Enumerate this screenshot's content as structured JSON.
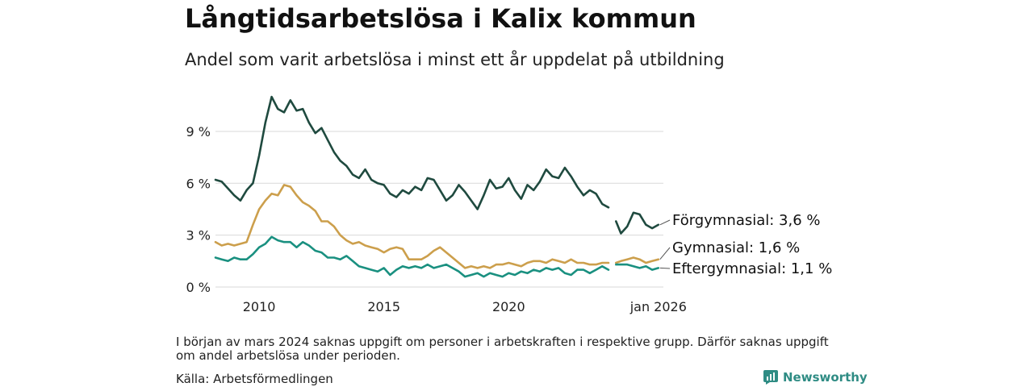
{
  "title": "Långtidsarbetslösa i Kalix kommun",
  "subtitle": "Andel som varit arbetslösa i minst ett år uppdelat på utbildning",
  "note": "I början av mars 2024 saknas uppgift om personer i arbetskraften i respektive grupp. Därför saknas uppgift om andel arbetslösa under perioden.",
  "source": "Källa: Arbetsförmedlingen",
  "brand": "Newsworthy",
  "colors": {
    "forgymnasial": "#1f4a3f",
    "gymnasial": "#cc9f4c",
    "eftergymnasial": "#1a9080",
    "grid": "#d9d9d9",
    "brand": "#2f8c84"
  },
  "chart_data": {
    "type": "line",
    "title": "Långtidsarbetslösa i Kalix kommun",
    "xlabel": "",
    "ylabel": "",
    "xlim": [
      2008.25,
      2026.2
    ],
    "ylim": [
      0,
      11.5
    ],
    "x_ticks": [
      {
        "value": 2010,
        "label": "2010"
      },
      {
        "value": 2015,
        "label": "2015"
      },
      {
        "value": 2020,
        "label": "2020"
      },
      {
        "value": 2026.0,
        "label": "jan 2026"
      }
    ],
    "y_ticks": [
      {
        "value": 0,
        "label": "0 %"
      },
      {
        "value": 3,
        "label": "3 %"
      },
      {
        "value": 6,
        "label": "6 %"
      },
      {
        "value": 9,
        "label": "9 %"
      }
    ],
    "gap": [
      2024.0,
      2024.3
    ],
    "series": [
      {
        "name": "Förgymnasial",
        "end_label": "Förgymnasial: 3,6 %",
        "color": "#1f4a3f",
        "points": [
          [
            2008.25,
            6.2
          ],
          [
            2008.5,
            6.1
          ],
          [
            2008.75,
            5.7
          ],
          [
            2009.0,
            5.3
          ],
          [
            2009.25,
            5.0
          ],
          [
            2009.5,
            5.6
          ],
          [
            2009.75,
            6.0
          ],
          [
            2010.0,
            7.6
          ],
          [
            2010.25,
            9.5
          ],
          [
            2010.5,
            11.0
          ],
          [
            2010.75,
            10.3
          ],
          [
            2011.0,
            10.1
          ],
          [
            2011.25,
            10.8
          ],
          [
            2011.5,
            10.2
          ],
          [
            2011.75,
            10.3
          ],
          [
            2012.0,
            9.5
          ],
          [
            2012.25,
            8.9
          ],
          [
            2012.5,
            9.2
          ],
          [
            2012.75,
            8.5
          ],
          [
            2013.0,
            7.8
          ],
          [
            2013.25,
            7.3
          ],
          [
            2013.5,
            7.0
          ],
          [
            2013.75,
            6.5
          ],
          [
            2014.0,
            6.3
          ],
          [
            2014.25,
            6.8
          ],
          [
            2014.5,
            6.2
          ],
          [
            2014.75,
            6.0
          ],
          [
            2015.0,
            5.9
          ],
          [
            2015.25,
            5.4
          ],
          [
            2015.5,
            5.2
          ],
          [
            2015.75,
            5.6
          ],
          [
            2016.0,
            5.4
          ],
          [
            2016.25,
            5.8
          ],
          [
            2016.5,
            5.6
          ],
          [
            2016.75,
            6.3
          ],
          [
            2017.0,
            6.2
          ],
          [
            2017.25,
            5.6
          ],
          [
            2017.5,
            5.0
          ],
          [
            2017.75,
            5.3
          ],
          [
            2018.0,
            5.9
          ],
          [
            2018.25,
            5.5
          ],
          [
            2018.5,
            5.0
          ],
          [
            2018.75,
            4.5
          ],
          [
            2019.0,
            5.3
          ],
          [
            2019.25,
            6.2
          ],
          [
            2019.5,
            5.7
          ],
          [
            2019.75,
            5.8
          ],
          [
            2020.0,
            6.3
          ],
          [
            2020.25,
            5.6
          ],
          [
            2020.5,
            5.1
          ],
          [
            2020.75,
            5.9
          ],
          [
            2021.0,
            5.6
          ],
          [
            2021.25,
            6.1
          ],
          [
            2021.5,
            6.8
          ],
          [
            2021.75,
            6.4
          ],
          [
            2022.0,
            6.3
          ],
          [
            2022.25,
            6.9
          ],
          [
            2022.5,
            6.4
          ],
          [
            2022.75,
            5.8
          ],
          [
            2023.0,
            5.3
          ],
          [
            2023.25,
            5.6
          ],
          [
            2023.5,
            5.4
          ],
          [
            2023.75,
            4.8
          ],
          [
            2024.0,
            4.6
          ],
          [
            null,
            null
          ],
          [
            2024.3,
            3.8
          ],
          [
            2024.5,
            3.1
          ],
          [
            2024.75,
            3.5
          ],
          [
            2025.0,
            4.3
          ],
          [
            2025.25,
            4.2
          ],
          [
            2025.5,
            3.6
          ],
          [
            2025.75,
            3.4
          ],
          [
            2026.0,
            3.6
          ]
        ]
      },
      {
        "name": "Gymnasial",
        "end_label": "Gymnasial: 1,6 %",
        "color": "#cc9f4c",
        "points": [
          [
            2008.25,
            2.6
          ],
          [
            2008.5,
            2.4
          ],
          [
            2008.75,
            2.5
          ],
          [
            2009.0,
            2.4
          ],
          [
            2009.25,
            2.5
          ],
          [
            2009.5,
            2.6
          ],
          [
            2009.75,
            3.6
          ],
          [
            2010.0,
            4.5
          ],
          [
            2010.25,
            5.0
          ],
          [
            2010.5,
            5.4
          ],
          [
            2010.75,
            5.3
          ],
          [
            2011.0,
            5.9
          ],
          [
            2011.25,
            5.8
          ],
          [
            2011.5,
            5.3
          ],
          [
            2011.75,
            4.9
          ],
          [
            2012.0,
            4.7
          ],
          [
            2012.25,
            4.4
          ],
          [
            2012.5,
            3.8
          ],
          [
            2012.75,
            3.8
          ],
          [
            2013.0,
            3.5
          ],
          [
            2013.25,
            3.0
          ],
          [
            2013.5,
            2.7
          ],
          [
            2013.75,
            2.5
          ],
          [
            2014.0,
            2.6
          ],
          [
            2014.25,
            2.4
          ],
          [
            2014.5,
            2.3
          ],
          [
            2014.75,
            2.2
          ],
          [
            2015.0,
            2.0
          ],
          [
            2015.25,
            2.2
          ],
          [
            2015.5,
            2.3
          ],
          [
            2015.75,
            2.2
          ],
          [
            2016.0,
            1.6
          ],
          [
            2016.25,
            1.6
          ],
          [
            2016.5,
            1.6
          ],
          [
            2016.75,
            1.8
          ],
          [
            2017.0,
            2.1
          ],
          [
            2017.25,
            2.3
          ],
          [
            2017.5,
            2.0
          ],
          [
            2017.75,
            1.7
          ],
          [
            2018.0,
            1.4
          ],
          [
            2018.25,
            1.1
          ],
          [
            2018.5,
            1.2
          ],
          [
            2018.75,
            1.1
          ],
          [
            2019.0,
            1.2
          ],
          [
            2019.25,
            1.1
          ],
          [
            2019.5,
            1.3
          ],
          [
            2019.75,
            1.3
          ],
          [
            2020.0,
            1.4
          ],
          [
            2020.25,
            1.3
          ],
          [
            2020.5,
            1.2
          ],
          [
            2020.75,
            1.4
          ],
          [
            2021.0,
            1.5
          ],
          [
            2021.25,
            1.5
          ],
          [
            2021.5,
            1.4
          ],
          [
            2021.75,
            1.6
          ],
          [
            2022.0,
            1.5
          ],
          [
            2022.25,
            1.4
          ],
          [
            2022.5,
            1.6
          ],
          [
            2022.75,
            1.4
          ],
          [
            2023.0,
            1.4
          ],
          [
            2023.25,
            1.3
          ],
          [
            2023.5,
            1.3
          ],
          [
            2023.75,
            1.4
          ],
          [
            2024.0,
            1.4
          ],
          [
            null,
            null
          ],
          [
            2024.3,
            1.4
          ],
          [
            2024.5,
            1.5
          ],
          [
            2024.75,
            1.6
          ],
          [
            2025.0,
            1.7
          ],
          [
            2025.25,
            1.6
          ],
          [
            2025.5,
            1.4
          ],
          [
            2025.75,
            1.5
          ],
          [
            2026.0,
            1.6
          ]
        ]
      },
      {
        "name": "Eftergymnasial",
        "end_label": "Eftergymnasial: 1,1 %",
        "color": "#1a9080",
        "points": [
          [
            2008.25,
            1.7
          ],
          [
            2008.5,
            1.6
          ],
          [
            2008.75,
            1.5
          ],
          [
            2009.0,
            1.7
          ],
          [
            2009.25,
            1.6
          ],
          [
            2009.5,
            1.6
          ],
          [
            2009.75,
            1.9
          ],
          [
            2010.0,
            2.3
          ],
          [
            2010.25,
            2.5
          ],
          [
            2010.5,
            2.9
          ],
          [
            2010.75,
            2.7
          ],
          [
            2011.0,
            2.6
          ],
          [
            2011.25,
            2.6
          ],
          [
            2011.5,
            2.3
          ],
          [
            2011.75,
            2.6
          ],
          [
            2012.0,
            2.4
          ],
          [
            2012.25,
            2.1
          ],
          [
            2012.5,
            2.0
          ],
          [
            2012.75,
            1.7
          ],
          [
            2013.0,
            1.7
          ],
          [
            2013.25,
            1.6
          ],
          [
            2013.5,
            1.8
          ],
          [
            2013.75,
            1.5
          ],
          [
            2014.0,
            1.2
          ],
          [
            2014.25,
            1.1
          ],
          [
            2014.5,
            1.0
          ],
          [
            2014.75,
            0.9
          ],
          [
            2015.0,
            1.1
          ],
          [
            2015.25,
            0.7
          ],
          [
            2015.5,
            1.0
          ],
          [
            2015.75,
            1.2
          ],
          [
            2016.0,
            1.1
          ],
          [
            2016.25,
            1.2
          ],
          [
            2016.5,
            1.1
          ],
          [
            2016.75,
            1.3
          ],
          [
            2017.0,
            1.1
          ],
          [
            2017.25,
            1.2
          ],
          [
            2017.5,
            1.3
          ],
          [
            2017.75,
            1.1
          ],
          [
            2018.0,
            0.9
          ],
          [
            2018.25,
            0.6
          ],
          [
            2018.5,
            0.7
          ],
          [
            2018.75,
            0.8
          ],
          [
            2019.0,
            0.6
          ],
          [
            2019.25,
            0.8
          ],
          [
            2019.5,
            0.7
          ],
          [
            2019.75,
            0.6
          ],
          [
            2020.0,
            0.8
          ],
          [
            2020.25,
            0.7
          ],
          [
            2020.5,
            0.9
          ],
          [
            2020.75,
            0.8
          ],
          [
            2021.0,
            1.0
          ],
          [
            2021.25,
            0.9
          ],
          [
            2021.5,
            1.1
          ],
          [
            2021.75,
            1.0
          ],
          [
            2022.0,
            1.1
          ],
          [
            2022.25,
            0.8
          ],
          [
            2022.5,
            0.7
          ],
          [
            2022.75,
            1.0
          ],
          [
            2023.0,
            1.0
          ],
          [
            2023.25,
            0.8
          ],
          [
            2023.5,
            1.0
          ],
          [
            2023.75,
            1.2
          ],
          [
            2024.0,
            1.0
          ],
          [
            null,
            null
          ],
          [
            2024.3,
            1.3
          ],
          [
            2024.5,
            1.3
          ],
          [
            2024.75,
            1.3
          ],
          [
            2025.0,
            1.2
          ],
          [
            2025.25,
            1.1
          ],
          [
            2025.5,
            1.2
          ],
          [
            2025.75,
            1.0
          ],
          [
            2026.0,
            1.1
          ]
        ]
      }
    ]
  }
}
